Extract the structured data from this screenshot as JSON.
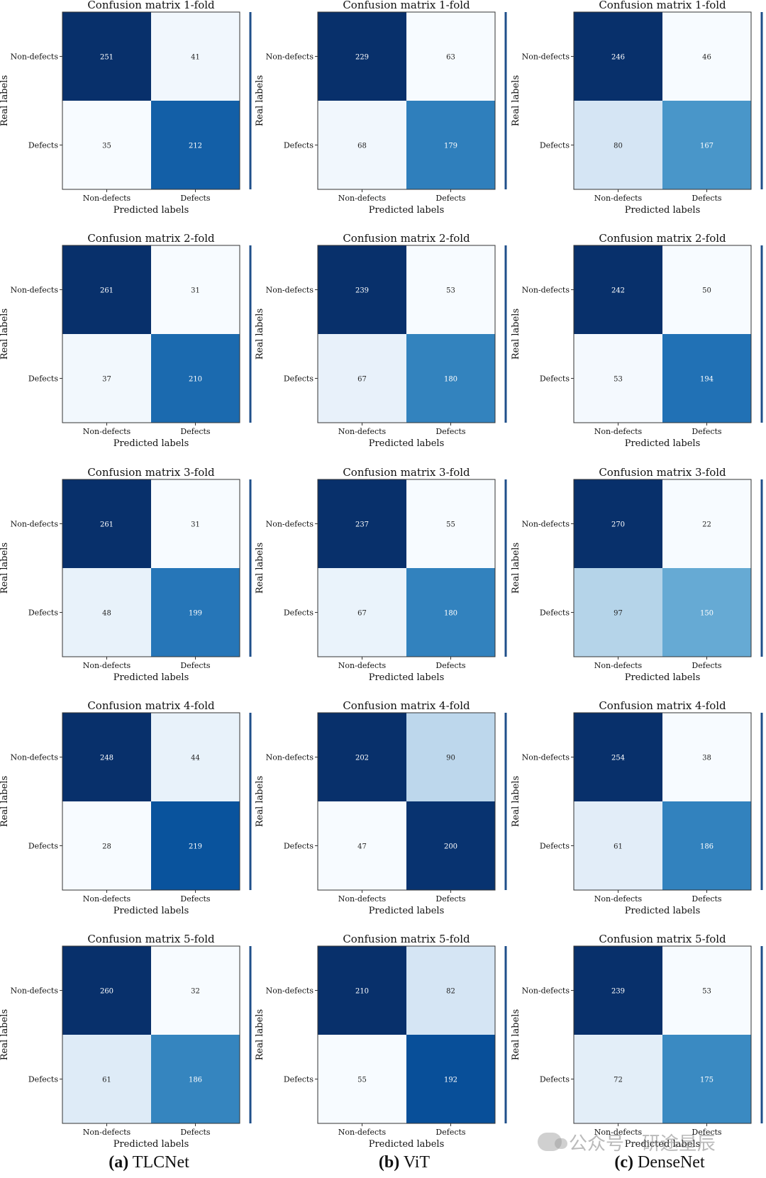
{
  "figure": {
    "captions": [
      {
        "letter": "(a)",
        "name": "TLCNet"
      },
      {
        "letter": "(b)",
        "name": "ViT"
      },
      {
        "letter": "(c)",
        "name": "DenseNet"
      }
    ],
    "watermark": "公众号 · 研途星辰"
  },
  "chart_data": [
    {
      "type": "heatmap",
      "model": "TLCNet",
      "title": "Confusion matrix 1-fold",
      "xlabel": "Predicted labels",
      "ylabel": "Real labels",
      "x_categories": [
        "Non-defects",
        "Defects"
      ],
      "y_categories": [
        "Non-defects",
        "Defects"
      ],
      "values": [
        [
          251,
          41
        ],
        [
          35,
          212
        ]
      ]
    },
    {
      "type": "heatmap",
      "model": "ViT",
      "title": "Confusion matrix 1-fold",
      "xlabel": "Predicted labels",
      "ylabel": "Real labels",
      "x_categories": [
        "Non-defects",
        "Defects"
      ],
      "y_categories": [
        "Non-defects",
        "Defects"
      ],
      "values": [
        [
          229,
          63
        ],
        [
          68,
          179
        ]
      ]
    },
    {
      "type": "heatmap",
      "model": "DenseNet",
      "title": "Confusion matrix 1-fold",
      "xlabel": "Predicted labels",
      "ylabel": "Real labels",
      "x_categories": [
        "Non-defects",
        "Defects"
      ],
      "y_categories": [
        "Non-defects",
        "Defects"
      ],
      "values": [
        [
          246,
          46
        ],
        [
          80,
          167
        ]
      ]
    },
    {
      "type": "heatmap",
      "model": "TLCNet",
      "title": "Confusion matrix 2-fold",
      "xlabel": "Predicted labels",
      "ylabel": "Real labels",
      "x_categories": [
        "Non-defects",
        "Defects"
      ],
      "y_categories": [
        "Non-defects",
        "Defects"
      ],
      "values": [
        [
          261,
          31
        ],
        [
          37,
          210
        ]
      ]
    },
    {
      "type": "heatmap",
      "model": "ViT",
      "title": "Confusion matrix 2-fold",
      "xlabel": "Predicted labels",
      "ylabel": "Real labels",
      "x_categories": [
        "Non-defects",
        "Defects"
      ],
      "y_categories": [
        "Non-defects",
        "Defects"
      ],
      "values": [
        [
          239,
          53
        ],
        [
          67,
          180
        ]
      ]
    },
    {
      "type": "heatmap",
      "model": "DenseNet",
      "title": "Confusion matrix 2-fold",
      "xlabel": "Predicted labels",
      "ylabel": "Real labels",
      "x_categories": [
        "Non-defects",
        "Defects"
      ],
      "y_categories": [
        "Non-defects",
        "Defects"
      ],
      "values": [
        [
          242,
          50
        ],
        [
          53,
          194
        ]
      ]
    },
    {
      "type": "heatmap",
      "model": "TLCNet",
      "title": "Confusion matrix 3-fold",
      "xlabel": "Predicted labels",
      "ylabel": "Real labels",
      "x_categories": [
        "Non-defects",
        "Defects"
      ],
      "y_categories": [
        "Non-defects",
        "Defects"
      ],
      "values": [
        [
          261,
          31
        ],
        [
          48,
          199
        ]
      ]
    },
    {
      "type": "heatmap",
      "model": "ViT",
      "title": "Confusion matrix 3-fold",
      "xlabel": "Predicted labels",
      "ylabel": "Real labels",
      "x_categories": [
        "Non-defects",
        "Defects"
      ],
      "y_categories": [
        "Non-defects",
        "Defects"
      ],
      "values": [
        [
          237,
          55
        ],
        [
          67,
          180
        ]
      ]
    },
    {
      "type": "heatmap",
      "model": "DenseNet",
      "title": "Confusion matrix 3-fold",
      "xlabel": "Predicted labels",
      "ylabel": "Real labels",
      "x_categories": [
        "Non-defects",
        "Defects"
      ],
      "y_categories": [
        "Non-defects",
        "Defects"
      ],
      "values": [
        [
          270,
          22
        ],
        [
          97,
          150
        ]
      ]
    },
    {
      "type": "heatmap",
      "model": "TLCNet",
      "title": "Confusion matrix 4-fold",
      "xlabel": "Predicted labels",
      "ylabel": "Real labels",
      "x_categories": [
        "Non-defects",
        "Defects"
      ],
      "y_categories": [
        "Non-defects",
        "Defects"
      ],
      "values": [
        [
          248,
          44
        ],
        [
          28,
          219
        ]
      ]
    },
    {
      "type": "heatmap",
      "model": "ViT",
      "title": "Confusion matrix 4-fold",
      "xlabel": "Predicted labels",
      "ylabel": "Real labels",
      "x_categories": [
        "Non-defects",
        "Defects"
      ],
      "y_categories": [
        "Non-defects",
        "Defects"
      ],
      "values": [
        [
          202,
          90
        ],
        [
          47,
          200
        ]
      ]
    },
    {
      "type": "heatmap",
      "model": "DenseNet",
      "title": "Confusion matrix 4-fold",
      "xlabel": "Predicted labels",
      "ylabel": "Real labels",
      "x_categories": [
        "Non-defects",
        "Defects"
      ],
      "y_categories": [
        "Non-defects",
        "Defects"
      ],
      "values": [
        [
          254,
          38
        ],
        [
          61,
          186
        ]
      ]
    },
    {
      "type": "heatmap",
      "model": "TLCNet",
      "title": "Confusion matrix 5-fold",
      "xlabel": "Predicted labels",
      "ylabel": "Real labels",
      "x_categories": [
        "Non-defects",
        "Defects"
      ],
      "y_categories": [
        "Non-defects",
        "Defects"
      ],
      "values": [
        [
          260,
          32
        ],
        [
          61,
          186
        ]
      ]
    },
    {
      "type": "heatmap",
      "model": "ViT",
      "title": "Confusion matrix 5-fold",
      "xlabel": "Predicted labels",
      "ylabel": "Real labels",
      "x_categories": [
        "Non-defects",
        "Defects"
      ],
      "y_categories": [
        "Non-defects",
        "Defects"
      ],
      "values": [
        [
          210,
          82
        ],
        [
          55,
          192
        ]
      ]
    },
    {
      "type": "heatmap",
      "model": "DenseNet",
      "title": "Confusion matrix 5-fold",
      "xlabel": "Predicted labels",
      "ylabel": "Real labels",
      "x_categories": [
        "Non-defects",
        "Defects"
      ],
      "y_categories": [
        "Non-defects",
        "Defects"
      ],
      "values": [
        [
          239,
          53
        ],
        [
          72,
          175
        ]
      ]
    }
  ]
}
